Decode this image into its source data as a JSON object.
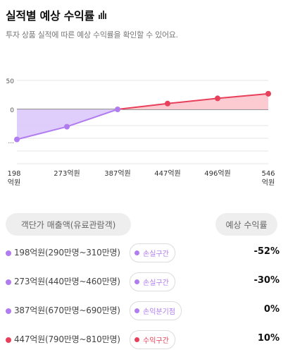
{
  "header": {
    "title": "실적별 예상 수익률",
    "subtitle": "투자 상품 실적에 따른 예상 수익률을 확인할 수 있어요."
  },
  "colors": {
    "loss": "#b07cf0",
    "loss_fill": "#dcc8fb",
    "profit": "#e8405a",
    "profit_fill": "#fbc8cf"
  },
  "chart_data": {
    "type": "area",
    "x": [
      "198억원",
      "273억원",
      "387억원",
      "447억원",
      "496억원",
      "546억원"
    ],
    "values": [
      -52,
      -30,
      0,
      10,
      19,
      27
    ],
    "ytick_labels": [
      "50",
      "0",
      "..."
    ],
    "ylim": [
      -60,
      50
    ],
    "grid": true
  },
  "table": {
    "header_left": "객단가 매출액(유료관람객)",
    "header_right": "예상 수익률",
    "rows": [
      {
        "label": "198억원(290만명~310만명)",
        "badge": "손실구간",
        "pct": "-52%",
        "kind": "loss"
      },
      {
        "label": "273억원(440만명~460만명)",
        "badge": "손실구간",
        "pct": "-30%",
        "kind": "loss"
      },
      {
        "label": "387억원(670만명~690만명)",
        "badge": "손익분기점",
        "pct": "0%",
        "kind": "loss"
      },
      {
        "label": "447억원(790만명~810만명)",
        "badge": "수익구간",
        "pct": "10%",
        "kind": "profit"
      }
    ]
  }
}
